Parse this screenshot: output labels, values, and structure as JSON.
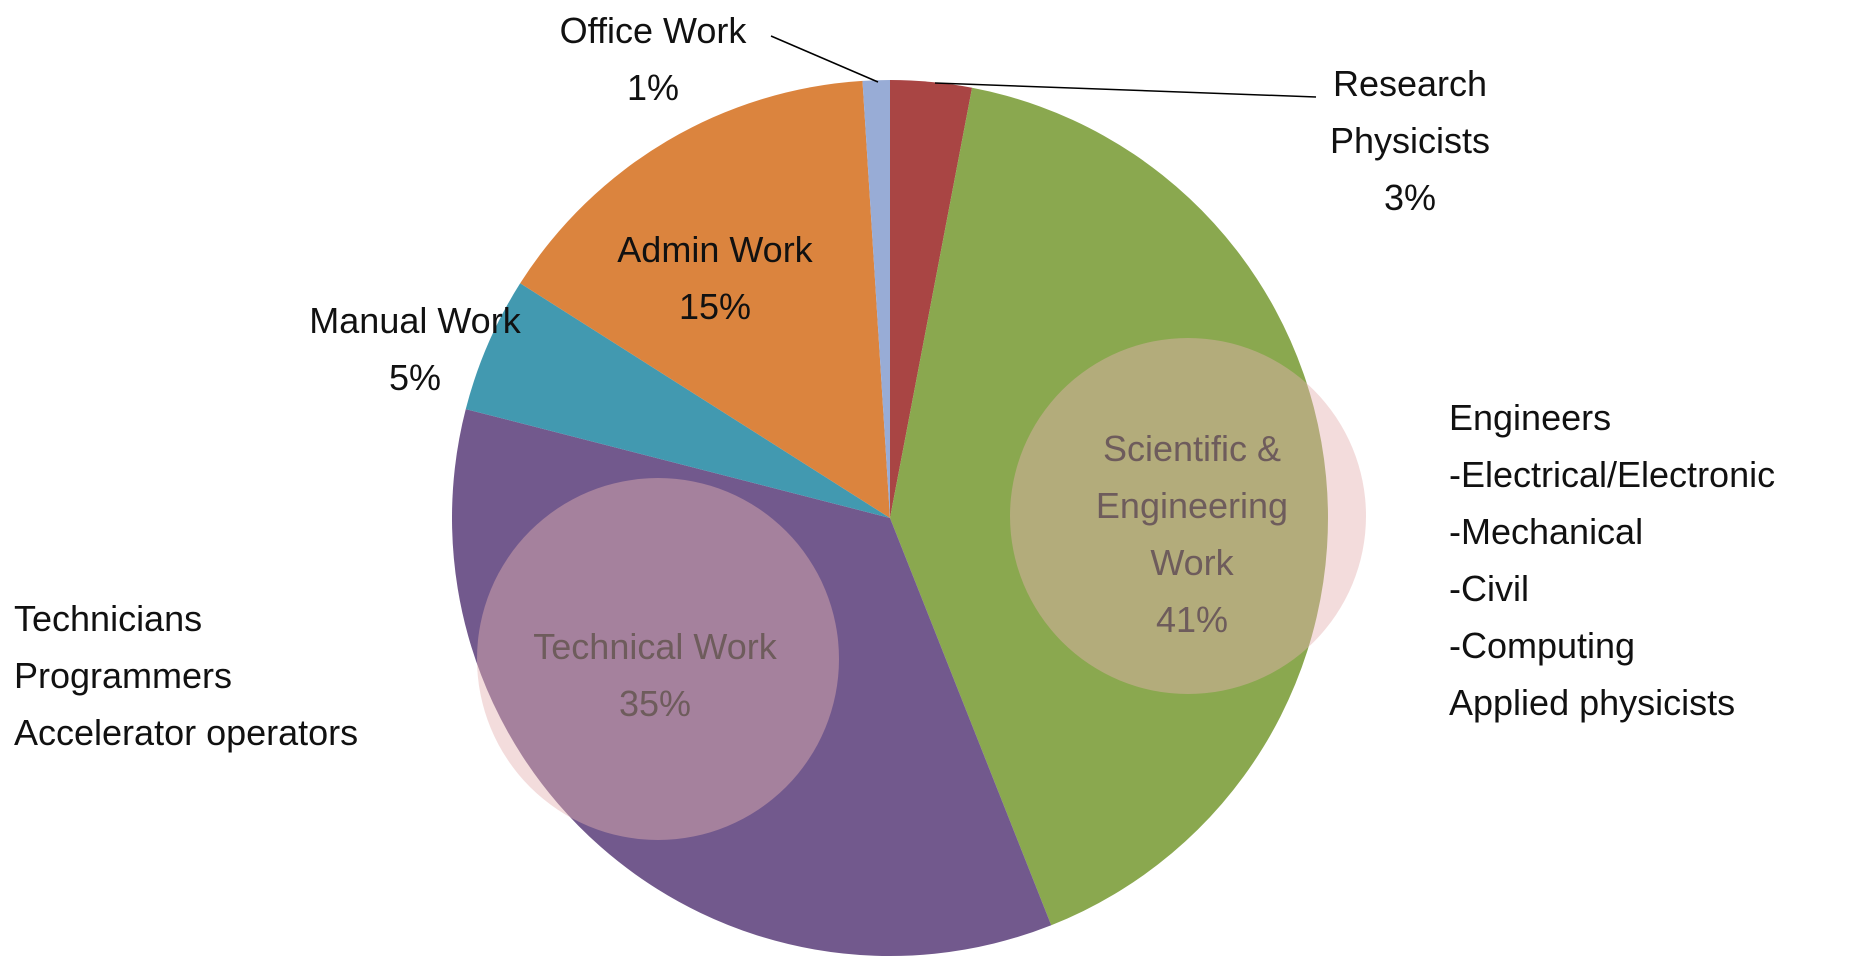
{
  "chart_data": {
    "type": "pie",
    "categories": [
      "Research Physicists",
      "Scientific & Engineering Work",
      "Technical Work",
      "Manual Work",
      "Admin Work",
      "Office Work"
    ],
    "values": [
      3,
      41,
      35,
      5,
      15,
      1
    ],
    "value_labels": [
      "3%",
      "41%",
      "35%",
      "5%",
      "15%",
      "1%"
    ],
    "colors": [
      "#a94544",
      "#8aa84f",
      "#72598d",
      "#4299b0",
      "#db843e",
      "#98acd6"
    ],
    "annotations": [
      {
        "lines": [
          "Engineers",
          "-Electrical/Electronic",
          "-Mechanical",
          "-Civil",
          "-Computing",
          "Applied physicists"
        ]
      },
      {
        "lines": [
          "Technicians",
          "Programmers",
          "Accelerator operators"
        ]
      }
    ]
  }
}
